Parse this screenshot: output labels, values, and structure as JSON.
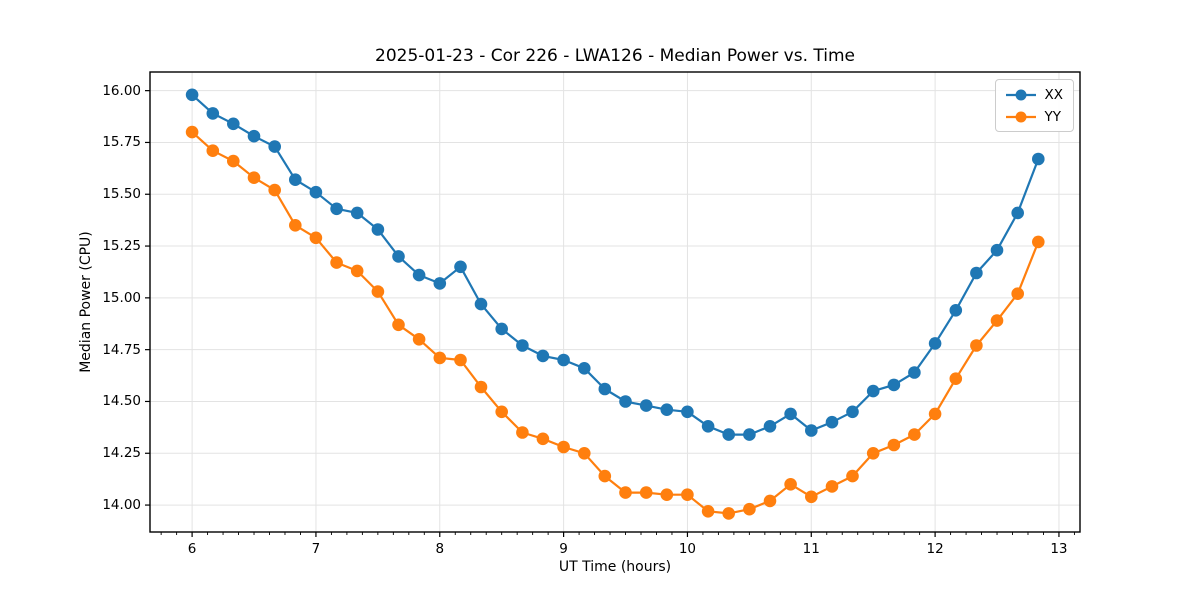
{
  "chart_data": {
    "type": "line",
    "title": "2025-01-23 - Cor 226 - LWA126 - Median Power vs. Time",
    "xlabel": "UT Time (hours)",
    "ylabel": "Median Power (CPU)",
    "xlim": [
      5.66,
      13.17
    ],
    "ylim": [
      13.87,
      16.09
    ],
    "grid": true,
    "legend_position": "upper right",
    "xticks": {
      "values": [
        6,
        7,
        8,
        9,
        10,
        11,
        12,
        13
      ],
      "labels": [
        "6",
        "7",
        "8",
        "9",
        "10",
        "11",
        "12",
        "13"
      ]
    },
    "yticks": {
      "values": [
        14.0,
        14.25,
        14.5,
        14.75,
        15.0,
        15.25,
        15.5,
        15.75,
        16.0
      ],
      "labels": [
        "14.00",
        "14.25",
        "14.50",
        "14.75",
        "15.00",
        "15.25",
        "15.50",
        "15.75",
        "16.00"
      ]
    },
    "x_minor_tick_step": 0.125,
    "x": [
      6.0,
      6.167,
      6.333,
      6.5,
      6.667,
      6.833,
      7.0,
      7.167,
      7.333,
      7.5,
      7.667,
      7.833,
      8.0,
      8.167,
      8.333,
      8.5,
      8.667,
      8.833,
      9.0,
      9.167,
      9.333,
      9.5,
      9.667,
      9.833,
      10.0,
      10.167,
      10.333,
      10.5,
      10.667,
      10.833,
      11.0,
      11.167,
      11.333,
      11.5,
      11.667,
      11.833,
      12.0,
      12.167,
      12.333,
      12.5,
      12.667,
      12.833
    ],
    "series": [
      {
        "name": "XX",
        "color": "#1f77b4",
        "values": [
          15.98,
          15.89,
          15.84,
          15.78,
          15.73,
          15.57,
          15.51,
          15.43,
          15.41,
          15.33,
          15.2,
          15.11,
          15.07,
          15.15,
          14.97,
          14.85,
          14.77,
          14.72,
          14.7,
          14.66,
          14.56,
          14.5,
          14.48,
          14.46,
          14.45,
          14.38,
          14.34,
          14.34,
          14.38,
          14.44,
          14.36,
          14.4,
          14.45,
          14.55,
          14.58,
          14.64,
          14.78,
          14.94,
          15.12,
          15.23,
          15.41,
          15.67
        ]
      },
      {
        "name": "YY",
        "color": "#ff7f0e",
        "values": [
          15.8,
          15.71,
          15.66,
          15.58,
          15.52,
          15.35,
          15.29,
          15.17,
          15.13,
          15.03,
          14.87,
          14.8,
          14.71,
          14.7,
          14.57,
          14.45,
          14.35,
          14.32,
          14.28,
          14.25,
          14.14,
          14.06,
          14.06,
          14.05,
          14.05,
          13.97,
          13.96,
          13.98,
          14.02,
          14.1,
          14.04,
          14.09,
          14.14,
          14.25,
          14.29,
          14.34,
          14.44,
          14.61,
          14.77,
          14.89,
          15.02,
          15.27
        ]
      }
    ],
    "colors": {
      "spine": "#000000",
      "grid": "#e3e3e3",
      "background": "#ffffff",
      "legend_border": "#cccccc"
    }
  }
}
